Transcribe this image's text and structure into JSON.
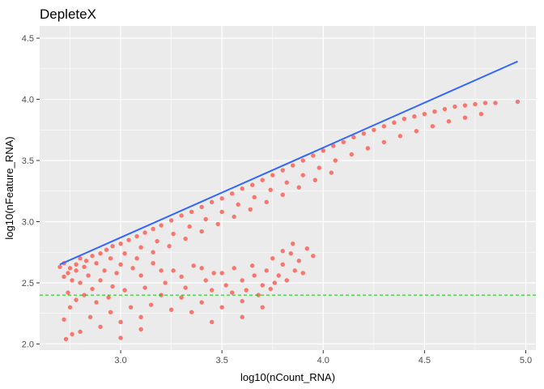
{
  "chart_data": {
    "type": "scatter",
    "title": "DepleteX",
    "xlabel": "log10(nCount_RNA)",
    "ylabel": "log10(nFeature_RNA)",
    "xlim": [
      2.6,
      5.05
    ],
    "ylim": [
      1.95,
      4.6
    ],
    "x_ticks": [
      3.0,
      3.5,
      4.0,
      4.5,
      5.0
    ],
    "x_tick_labels": [
      "3.0",
      "3.5",
      "4.0",
      "4.5",
      "5.0"
    ],
    "y_ticks": [
      2.0,
      2.5,
      3.0,
      3.5,
      4.0,
      4.5
    ],
    "y_tick_labels": [
      "2.0",
      "2.5",
      "3.0",
      "3.5",
      "4.0",
      "4.5"
    ],
    "grid": true,
    "legend": "none",
    "colors": {
      "points": "#F8766D",
      "fit_line": "#3366FF",
      "threshold_line": "#00CC00",
      "panel_bg": "#EBEBEB",
      "grid": "#FFFFFF"
    },
    "fit_line": {
      "x": [
        2.7,
        4.96
      ],
      "y": [
        2.65,
        4.31
      ]
    },
    "threshold_line": {
      "y": 2.4,
      "style": "dashed"
    },
    "series": [
      {
        "points": [
          [
            2.7,
            2.63
          ],
          [
            2.72,
            2.66
          ],
          [
            2.75,
            2.62
          ],
          [
            2.78,
            2.65
          ],
          [
            2.8,
            2.7
          ],
          [
            2.83,
            2.68
          ],
          [
            2.86,
            2.72
          ],
          [
            2.9,
            2.74
          ],
          [
            2.93,
            2.77
          ],
          [
            2.96,
            2.8
          ],
          [
            3.0,
            2.82
          ],
          [
            3.04,
            2.85
          ],
          [
            3.08,
            2.88
          ],
          [
            3.12,
            2.91
          ],
          [
            3.16,
            2.94
          ],
          [
            3.2,
            2.97
          ],
          [
            3.25,
            3.01
          ],
          [
            3.3,
            3.05
          ],
          [
            3.35,
            3.08
          ],
          [
            3.4,
            3.12
          ],
          [
            3.45,
            3.16
          ],
          [
            3.5,
            3.19
          ],
          [
            3.55,
            3.23
          ],
          [
            3.6,
            3.27
          ],
          [
            3.65,
            3.3
          ],
          [
            3.7,
            3.34
          ],
          [
            3.75,
            3.38
          ],
          [
            3.8,
            3.42
          ],
          [
            3.85,
            3.46
          ],
          [
            3.9,
            3.5
          ],
          [
            3.95,
            3.54
          ],
          [
            4.0,
            3.58
          ],
          [
            4.05,
            3.62
          ],
          [
            4.1,
            3.65
          ],
          [
            4.15,
            3.69
          ],
          [
            4.2,
            3.72
          ],
          [
            4.25,
            3.75
          ],
          [
            4.3,
            3.78
          ],
          [
            4.35,
            3.81
          ],
          [
            4.4,
            3.84
          ],
          [
            4.45,
            3.86
          ],
          [
            4.5,
            3.88
          ],
          [
            4.55,
            3.9
          ],
          [
            4.6,
            3.92
          ],
          [
            4.65,
            3.94
          ],
          [
            4.7,
            3.95
          ],
          [
            4.75,
            3.96
          ],
          [
            4.8,
            3.97
          ],
          [
            4.85,
            3.97
          ],
          [
            4.96,
            3.98
          ],
          [
            2.74,
            2.58
          ],
          [
            2.78,
            2.6
          ],
          [
            2.82,
            2.63
          ],
          [
            2.88,
            2.66
          ],
          [
            2.95,
            2.7
          ],
          [
            3.02,
            2.74
          ],
          [
            3.1,
            2.79
          ],
          [
            3.18,
            2.84
          ],
          [
            3.26,
            2.9
          ],
          [
            3.34,
            2.96
          ],
          [
            3.42,
            3.02
          ],
          [
            3.5,
            3.08
          ],
          [
            3.58,
            3.14
          ],
          [
            3.66,
            3.2
          ],
          [
            3.74,
            3.26
          ],
          [
            3.82,
            3.32
          ],
          [
            3.9,
            3.38
          ],
          [
            3.98,
            3.44
          ],
          [
            4.06,
            3.5
          ],
          [
            4.14,
            3.55
          ],
          [
            4.22,
            3.6
          ],
          [
            4.3,
            3.65
          ],
          [
            4.38,
            3.7
          ],
          [
            4.46,
            3.74
          ],
          [
            4.54,
            3.78
          ],
          [
            4.62,
            3.82
          ],
          [
            4.7,
            3.85
          ],
          [
            4.78,
            3.88
          ],
          [
            2.76,
            2.52
          ],
          [
            2.84,
            2.56
          ],
          [
            2.92,
            2.6
          ],
          [
            3.0,
            2.65
          ],
          [
            3.08,
            2.7
          ],
          [
            3.16,
            2.75
          ],
          [
            3.24,
            2.8
          ],
          [
            3.32,
            2.86
          ],
          [
            3.4,
            2.92
          ],
          [
            3.48,
            2.98
          ],
          [
            3.56,
            3.04
          ],
          [
            3.64,
            3.1
          ],
          [
            3.72,
            3.16
          ],
          [
            3.8,
            3.22
          ],
          [
            3.88,
            3.28
          ],
          [
            3.96,
            3.34
          ],
          [
            4.04,
            3.4
          ],
          [
            2.72,
            2.55
          ],
          [
            2.8,
            2.5
          ],
          [
            2.86,
            2.45
          ],
          [
            2.9,
            2.52
          ],
          [
            2.96,
            2.47
          ],
          [
            3.1,
            2.56
          ],
          [
            3.2,
            2.6
          ],
          [
            3.3,
            2.55
          ],
          [
            3.4,
            2.62
          ],
          [
            3.5,
            2.58
          ],
          [
            3.6,
            2.52
          ],
          [
            3.65,
            2.64
          ],
          [
            3.7,
            2.48
          ],
          [
            3.72,
            2.6
          ],
          [
            3.75,
            2.7
          ],
          [
            3.78,
            2.56
          ],
          [
            3.8,
            2.65
          ],
          [
            3.82,
            2.52
          ],
          [
            3.84,
            2.74
          ],
          [
            3.86,
            2.6
          ],
          [
            3.88,
            2.68
          ],
          [
            3.9,
            2.58
          ],
          [
            3.92,
            2.78
          ],
          [
            3.95,
            2.72
          ],
          [
            3.85,
            2.82
          ],
          [
            3.8,
            2.76
          ],
          [
            3.6,
            2.35
          ],
          [
            3.55,
            2.42
          ],
          [
            3.5,
            2.3
          ],
          [
            3.45,
            2.44
          ],
          [
            3.4,
            2.34
          ],
          [
            3.35,
            2.26
          ],
          [
            3.3,
            2.38
          ],
          [
            3.25,
            2.28
          ],
          [
            3.2,
            2.4
          ],
          [
            3.15,
            2.32
          ],
          [
            3.1,
            2.22
          ],
          [
            3.05,
            2.3
          ],
          [
            3.0,
            2.18
          ],
          [
            2.95,
            2.26
          ],
          [
            2.9,
            2.14
          ],
          [
            2.85,
            2.22
          ],
          [
            2.8,
            2.1
          ],
          [
            2.75,
            2.3
          ],
          [
            2.72,
            2.2
          ],
          [
            2.73,
            2.04
          ],
          [
            2.76,
            2.08
          ],
          [
            3.0,
            2.05
          ],
          [
            3.1,
            2.12
          ],
          [
            3.45,
            2.18
          ],
          [
            3.6,
            2.22
          ],
          [
            3.7,
            2.3
          ],
          [
            2.74,
            2.42
          ],
          [
            2.78,
            2.36
          ],
          [
            2.82,
            2.4
          ],
          [
            2.88,
            2.34
          ],
          [
            2.94,
            2.38
          ],
          [
            3.02,
            2.44
          ],
          [
            3.12,
            2.46
          ],
          [
            3.22,
            2.5
          ],
          [
            3.32,
            2.46
          ],
          [
            3.42,
            2.52
          ],
          [
            3.52,
            2.48
          ],
          [
            3.62,
            2.44
          ],
          [
            3.68,
            2.4
          ],
          [
            3.74,
            2.45
          ],
          [
            3.76,
            2.5
          ],
          [
            3.66,
            2.56
          ],
          [
            3.56,
            2.62
          ],
          [
            3.46,
            2.58
          ],
          [
            3.36,
            2.64
          ],
          [
            3.26,
            2.6
          ],
          [
            3.16,
            2.66
          ],
          [
            3.06,
            2.62
          ],
          [
            2.98,
            2.58
          ]
        ]
      }
    ]
  }
}
